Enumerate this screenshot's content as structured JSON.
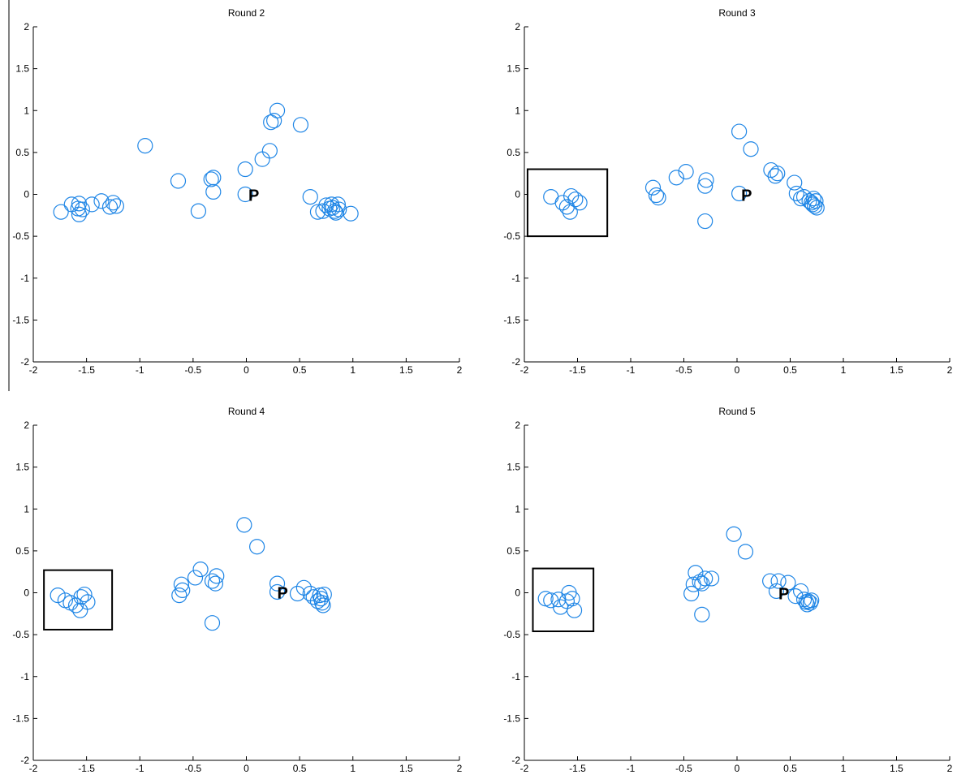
{
  "colors": {
    "marker": "#1f86e6",
    "axis": "#000000",
    "background": "#ffffff"
  },
  "chart_data": [
    {
      "type": "scatter",
      "title": "Round 2",
      "xlim": [
        -2,
        2
      ],
      "ylim": [
        -2,
        2
      ],
      "xticks": [
        "-2",
        "-1.5",
        "-1",
        "-0.5",
        "0",
        "0.5",
        "1",
        "1.5",
        "2"
      ],
      "yticks": [
        "-2",
        "-1.5",
        "-1",
        "-0.5",
        "0",
        "0.5",
        "1",
        "1.5",
        "2"
      ],
      "grid": false,
      "marker": "open-circle",
      "points": [
        [
          -1.74,
          -0.21
        ],
        [
          -1.64,
          -0.12
        ],
        [
          -1.57,
          -0.11
        ],
        [
          -1.58,
          -0.17
        ],
        [
          -1.57,
          -0.24
        ],
        [
          -1.54,
          -0.18
        ],
        [
          -1.45,
          -0.12
        ],
        [
          -1.36,
          -0.08
        ],
        [
          -1.28,
          -0.15
        ],
        [
          -1.25,
          -0.1
        ],
        [
          -1.22,
          -0.14
        ],
        [
          -0.95,
          0.58
        ],
        [
          -0.64,
          0.16
        ],
        [
          -0.45,
          -0.2
        ],
        [
          -0.33,
          0.18
        ],
        [
          -0.31,
          0.2
        ],
        [
          -0.31,
          0.03
        ],
        [
          -0.01,
          0.3
        ],
        [
          -0.01,
          0.0
        ],
        [
          0.15,
          0.42
        ],
        [
          0.22,
          0.52
        ],
        [
          0.23,
          0.86
        ],
        [
          0.26,
          0.88
        ],
        [
          0.29,
          1.0
        ],
        [
          0.51,
          0.83
        ],
        [
          0.6,
          -0.03
        ],
        [
          0.67,
          -0.21
        ],
        [
          0.72,
          -0.2
        ],
        [
          0.75,
          -0.13
        ],
        [
          0.78,
          -0.17
        ],
        [
          0.8,
          -0.12
        ],
        [
          0.81,
          -0.16
        ],
        [
          0.83,
          -0.2
        ],
        [
          0.84,
          -0.22
        ],
        [
          0.86,
          -0.12
        ],
        [
          0.87,
          -0.18
        ],
        [
          0.98,
          -0.23
        ]
      ],
      "label": "P",
      "label_pos": [
        0.07,
        -0.01
      ]
    },
    {
      "type": "scatter",
      "title": "Round 3",
      "xlim": [
        -2,
        2
      ],
      "ylim": [
        -2,
        2
      ],
      "xticks": [
        "-2",
        "-1.5",
        "-1",
        "-0.5",
        "0",
        "0.5",
        "1",
        "1.5",
        "2"
      ],
      "yticks": [
        "-2",
        "-1.5",
        "-1",
        "-0.5",
        "0",
        "0.5",
        "1",
        "1.5",
        "2"
      ],
      "grid": false,
      "marker": "open-circle",
      "points": [
        [
          -1.75,
          -0.03
        ],
        [
          -1.64,
          -0.1
        ],
        [
          -1.6,
          -0.15
        ],
        [
          -1.57,
          -0.21
        ],
        [
          -1.56,
          -0.02
        ],
        [
          -1.52,
          -0.06
        ],
        [
          -1.48,
          -0.1
        ],
        [
          -0.79,
          0.08
        ],
        [
          -0.76,
          -0.01
        ],
        [
          -0.74,
          -0.04
        ],
        [
          -0.57,
          0.2
        ],
        [
          -0.48,
          0.27
        ],
        [
          -0.3,
          0.1
        ],
        [
          -0.29,
          0.17
        ],
        [
          -0.3,
          -0.32
        ],
        [
          0.02,
          0.75
        ],
        [
          0.02,
          0.01
        ],
        [
          0.13,
          0.54
        ],
        [
          0.32,
          0.29
        ],
        [
          0.36,
          0.22
        ],
        [
          0.38,
          0.25
        ],
        [
          0.54,
          0.14
        ],
        [
          0.56,
          0.01
        ],
        [
          0.6,
          -0.05
        ],
        [
          0.63,
          -0.03
        ],
        [
          0.68,
          -0.08
        ],
        [
          0.7,
          -0.1
        ],
        [
          0.71,
          -0.12
        ],
        [
          0.72,
          -0.05
        ],
        [
          0.73,
          -0.14
        ],
        [
          0.74,
          -0.08
        ],
        [
          0.75,
          -0.16
        ]
      ],
      "label": "P",
      "label_pos": [
        0.09,
        -0.01
      ],
      "box": {
        "x": [
          -1.97,
          -1.22
        ],
        "y": [
          -0.5,
          0.3
        ]
      }
    },
    {
      "type": "scatter",
      "title": "Round 4",
      "xlim": [
        -2,
        2
      ],
      "ylim": [
        -2,
        2
      ],
      "xticks": [
        "-2",
        "-1.5",
        "-1",
        "-0.5",
        "0",
        "0.5",
        "1",
        "1.5",
        "2"
      ],
      "yticks": [
        "-2",
        "-1.5",
        "-1",
        "-0.5",
        "0",
        "0.5",
        "1",
        "1.5",
        "2"
      ],
      "grid": false,
      "marker": "open-circle",
      "points": [
        [
          -1.77,
          -0.03
        ],
        [
          -1.7,
          -0.09
        ],
        [
          -1.65,
          -0.12
        ],
        [
          -1.6,
          -0.15
        ],
        [
          -1.56,
          -0.21
        ],
        [
          -1.55,
          -0.05
        ],
        [
          -1.52,
          -0.02
        ],
        [
          -1.49,
          -0.11
        ],
        [
          -0.63,
          -0.03
        ],
        [
          -0.61,
          0.1
        ],
        [
          -0.6,
          0.03
        ],
        [
          -0.48,
          0.18
        ],
        [
          -0.43,
          0.28
        ],
        [
          -0.32,
          0.14
        ],
        [
          -0.29,
          0.11
        ],
        [
          -0.28,
          0.2
        ],
        [
          -0.32,
          -0.36
        ],
        [
          -0.02,
          0.81
        ],
        [
          0.1,
          0.55
        ],
        [
          0.29,
          0.11
        ],
        [
          0.29,
          0.01
        ],
        [
          0.48,
          -0.01
        ],
        [
          0.54,
          0.06
        ],
        [
          0.6,
          -0.01
        ],
        [
          0.63,
          -0.05
        ],
        [
          0.67,
          -0.1
        ],
        [
          0.69,
          -0.03
        ],
        [
          0.7,
          -0.07
        ],
        [
          0.71,
          -0.12
        ],
        [
          0.72,
          -0.15
        ],
        [
          0.73,
          -0.02
        ]
      ],
      "label": "P",
      "label_pos": [
        0.34,
        0.0
      ],
      "box": {
        "x": [
          -1.9,
          -1.26
        ],
        "y": [
          -0.44,
          0.27
        ]
      }
    },
    {
      "type": "scatter",
      "title": "Round 5",
      "xlim": [
        -2,
        2
      ],
      "ylim": [
        -2,
        2
      ],
      "xticks": [
        "-2",
        "-1.5",
        "-1",
        "-0.5",
        "0",
        "0.5",
        "1",
        "1.5",
        "2"
      ],
      "yticks": [
        "-2",
        "-1.5",
        "-1",
        "-0.5",
        "0",
        "0.5",
        "1",
        "1.5",
        "2"
      ],
      "grid": false,
      "marker": "open-circle",
      "points": [
        [
          -1.8,
          -0.07
        ],
        [
          -1.75,
          -0.09
        ],
        [
          -1.68,
          -0.08
        ],
        [
          -1.66,
          -0.17
        ],
        [
          -1.6,
          -0.1
        ],
        [
          -1.58,
          0.0
        ],
        [
          -1.55,
          -0.07
        ],
        [
          -1.53,
          -0.21
        ],
        [
          -0.43,
          -0.01
        ],
        [
          -0.41,
          0.1
        ],
        [
          -0.39,
          0.24
        ],
        [
          -0.35,
          0.13
        ],
        [
          -0.33,
          0.11
        ],
        [
          -0.3,
          0.17
        ],
        [
          -0.24,
          0.17
        ],
        [
          -0.33,
          -0.26
        ],
        [
          -0.03,
          0.7
        ],
        [
          0.08,
          0.49
        ],
        [
          0.31,
          0.14
        ],
        [
          0.37,
          0.02
        ],
        [
          0.39,
          0.14
        ],
        [
          0.48,
          0.12
        ],
        [
          0.55,
          -0.04
        ],
        [
          0.6,
          0.02
        ],
        [
          0.63,
          -0.08
        ],
        [
          0.65,
          -0.11
        ],
        [
          0.66,
          -0.14
        ],
        [
          0.67,
          -0.1
        ],
        [
          0.69,
          -0.12
        ],
        [
          0.7,
          -0.09
        ]
      ],
      "label": "P",
      "label_pos": [
        0.44,
        -0.01
      ],
      "box": {
        "x": [
          -1.92,
          -1.35
        ],
        "y": [
          -0.46,
          0.29
        ]
      }
    }
  ]
}
